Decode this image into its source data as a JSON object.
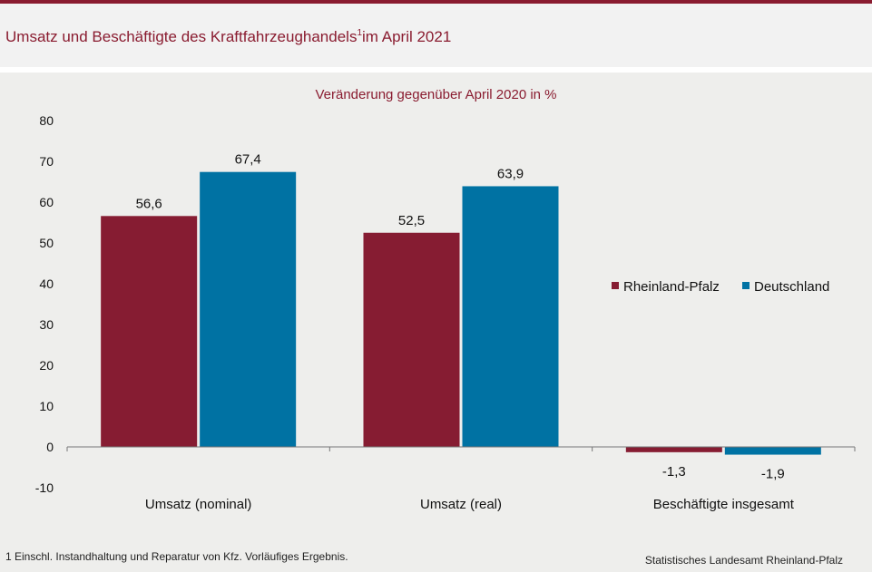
{
  "header": {
    "title": "Umsatz und Beschäftigte des Kraftfahrzeughandels",
    "title_sup": "1",
    "title_suffix": "im April 2021"
  },
  "chart_data": {
    "type": "bar",
    "title": "Veränderung gegenüber April 2020 in %",
    "categories": [
      "Umsatz (nominal)",
      "Umsatz (real)",
      "Beschäftigte insgesamt"
    ],
    "series": [
      {
        "name": "Rheinland-Pfalz",
        "values": [
          56.6,
          52.5,
          -1.3
        ],
        "labels": [
          "56,6",
          "52,5",
          "-1,3"
        ],
        "color": "#861c32"
      },
      {
        "name": "Deutschland",
        "values": [
          67.4,
          63.9,
          -1.9
        ],
        "labels": [
          "67,4",
          "63,9",
          "-1,9"
        ],
        "color": "#0072a3"
      }
    ],
    "ylim": [
      -10,
      80
    ],
    "yticks": [
      "-10",
      "0",
      "10",
      "20",
      "30",
      "40",
      "50",
      "60",
      "70",
      "80"
    ],
    "legend_position": "right"
  },
  "footer": {
    "footnote": "1 Einschl. Instandhaltung und Reparatur von Kfz. Vorläufiges Ergebnis.",
    "source": "Statistisches Landesamt Rheinland-Pfalz"
  },
  "colors": {
    "accent": "#8a1c30",
    "background": "#eeeeec"
  }
}
